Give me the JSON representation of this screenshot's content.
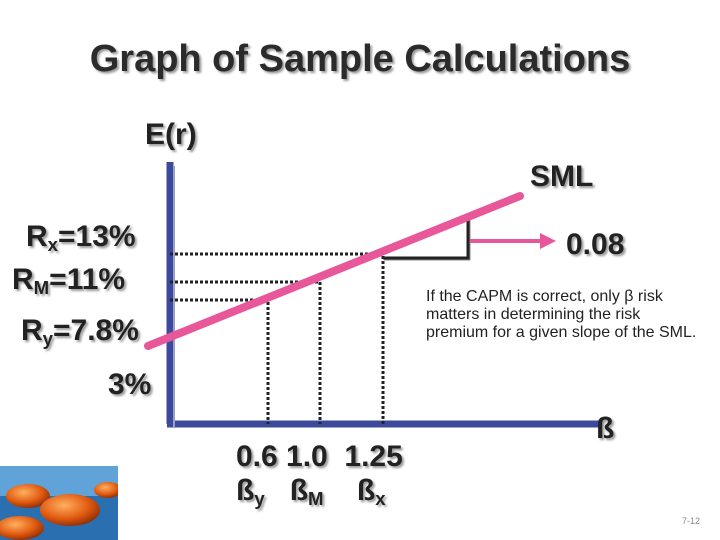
{
  "title": "Graph of Sample Calculations",
  "axes": {
    "y_label": "E(r)",
    "x_label": "ß"
  },
  "line_label": "SML",
  "slope_label": "0.08",
  "returns": [
    {
      "main": "R",
      "sub": "x",
      "value": "=13%"
    },
    {
      "main": "R",
      "sub": "M",
      "value": "=11%"
    },
    {
      "main": "R",
      "sub": "y",
      "value": "=7.8%"
    }
  ],
  "rf": "3%",
  "beta_values": "0.6 1.0  1.25",
  "beta_labels": [
    {
      "main": "ß",
      "sub": "y"
    },
    {
      "main": "ß",
      "sub": "M"
    },
    {
      "main": "ß",
      "sub": "x"
    }
  ],
  "note": "If the CAPM is correct, only β risk matters in determining the risk premium for a given slope of the SML.",
  "slide_number": "7-12",
  "colors": {
    "line": "#e8579a",
    "axis": "#3d4a9c",
    "arrow": "#e8579a"
  }
}
